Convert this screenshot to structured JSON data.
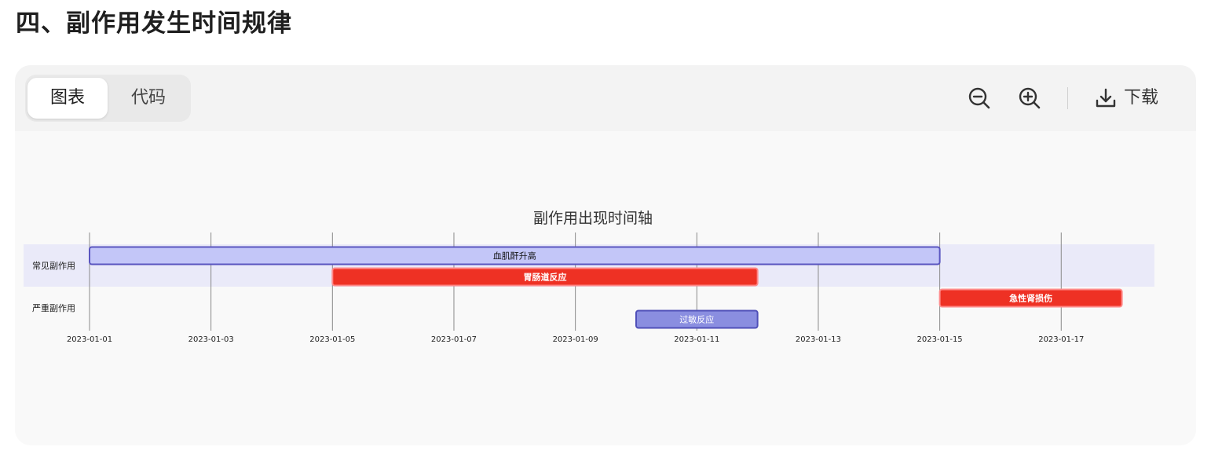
{
  "section": {
    "title": "四、副作用发生时间规律"
  },
  "toolbar": {
    "tabs": [
      {
        "label": "图表",
        "active": true
      },
      {
        "label": "代码",
        "active": false
      }
    ],
    "zoom_out_icon": "zoom-out-icon",
    "zoom_in_icon": "zoom-in-icon",
    "download_icon": "download-icon",
    "download_label": "下载"
  },
  "chart_data": {
    "type": "gantt",
    "title": "副作用出现时间轴",
    "x_range": [
      "2023-01-01",
      "2023-01-19"
    ],
    "x_ticks": [
      "2023-01-01",
      "2023-01-03",
      "2023-01-05",
      "2023-01-07",
      "2023-01-09",
      "2023-01-11",
      "2023-01-13",
      "2023-01-15",
      "2023-01-17"
    ],
    "sections": [
      {
        "name": "常见副作用",
        "shaded": true
      },
      {
        "name": "严重副作用",
        "shaded": false
      }
    ],
    "tasks": [
      {
        "label": "血肌酐升高",
        "section": "常见副作用",
        "start": "2023-01-01",
        "end": "2023-01-15",
        "style": "normal"
      },
      {
        "label": "胃肠道反应",
        "section": "常见副作用",
        "start": "2023-01-05",
        "end": "2023-01-12",
        "style": "critical"
      },
      {
        "label": "急性肾损伤",
        "section": "严重副作用",
        "start": "2023-01-15",
        "end": "2023-01-18",
        "style": "critical"
      },
      {
        "label": "过敏反应",
        "section": "严重副作用",
        "start": "2023-01-10",
        "end": "2023-01-12",
        "style": "active"
      }
    ],
    "colors": {
      "normal_fill": "#c3c6f8",
      "normal_stroke": "#5a55c0",
      "critical_fill": "#ee3124",
      "critical_stroke": "#ff8a8a",
      "active_fill": "#8a8ee0",
      "active_stroke": "#4f4fb8",
      "section_shade": "#eaeaf9",
      "grid": "#8a8a8a"
    }
  }
}
